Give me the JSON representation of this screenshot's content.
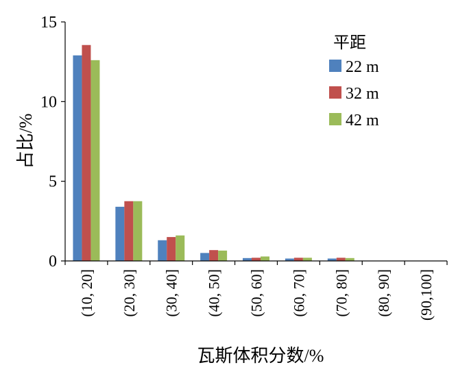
{
  "chart_data": {
    "type": "bar",
    "title": "",
    "xlabel": "瓦斯体积分数/%",
    "ylabel": "占比/%",
    "ylim": [
      0,
      15
    ],
    "yticks": [
      0,
      5,
      10,
      15
    ],
    "categories": [
      "(10, 20]",
      "(20, 30]",
      "(30, 40]",
      "(40, 50]",
      "(50, 60]",
      "(60, 70]",
      "(70, 80]",
      "(80, 90]",
      "(90,100]"
    ],
    "legend_title": "平距",
    "legend_position": "top-right",
    "grid": false,
    "series": [
      {
        "name": "22 m",
        "color": "#4f81bd",
        "values": [
          12.9,
          3.4,
          1.3,
          0.5,
          0.18,
          0.15,
          0.15,
          0,
          0
        ]
      },
      {
        "name": "32 m",
        "color": "#c0504d",
        "values": [
          13.55,
          3.75,
          1.5,
          0.68,
          0.2,
          0.2,
          0.2,
          0,
          0
        ]
      },
      {
        "name": "42 m",
        "color": "#9bbb59",
        "values": [
          12.6,
          3.75,
          1.6,
          0.65,
          0.28,
          0.2,
          0.18,
          0,
          0
        ]
      }
    ]
  }
}
